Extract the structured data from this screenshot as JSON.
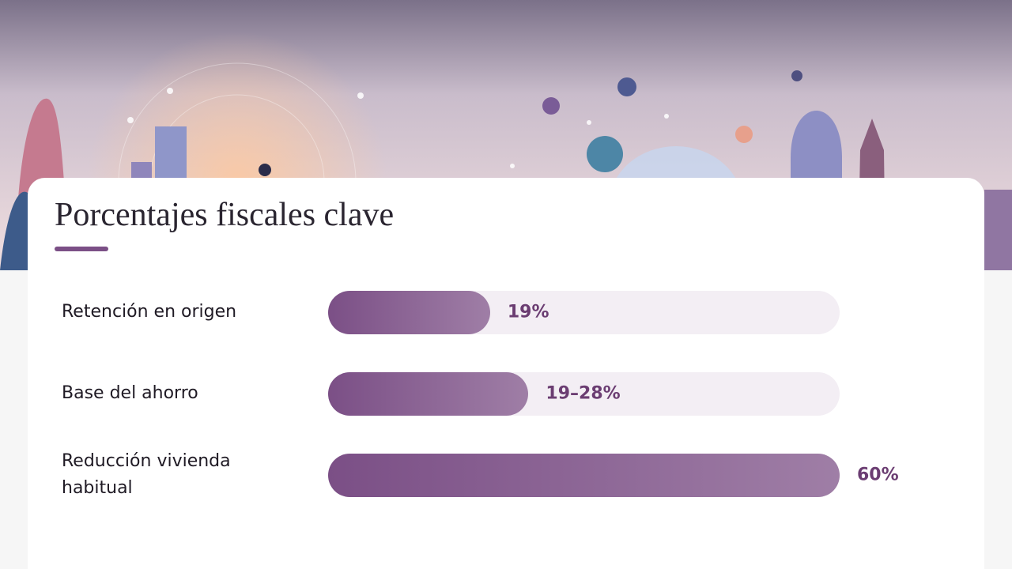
{
  "chart_data": {
    "type": "bar",
    "title": "Porcentajes fiscales clave",
    "categories": [
      "Retención en origen",
      "Base del ahorro",
      "Reducción vivienda habitual"
    ],
    "values": [
      19,
      [
        19,
        28
      ],
      60
    ],
    "value_labels": [
      "19%",
      "19–28%",
      "60%"
    ],
    "xlim": [
      0,
      60
    ],
    "color": "#7b4f86"
  }
}
